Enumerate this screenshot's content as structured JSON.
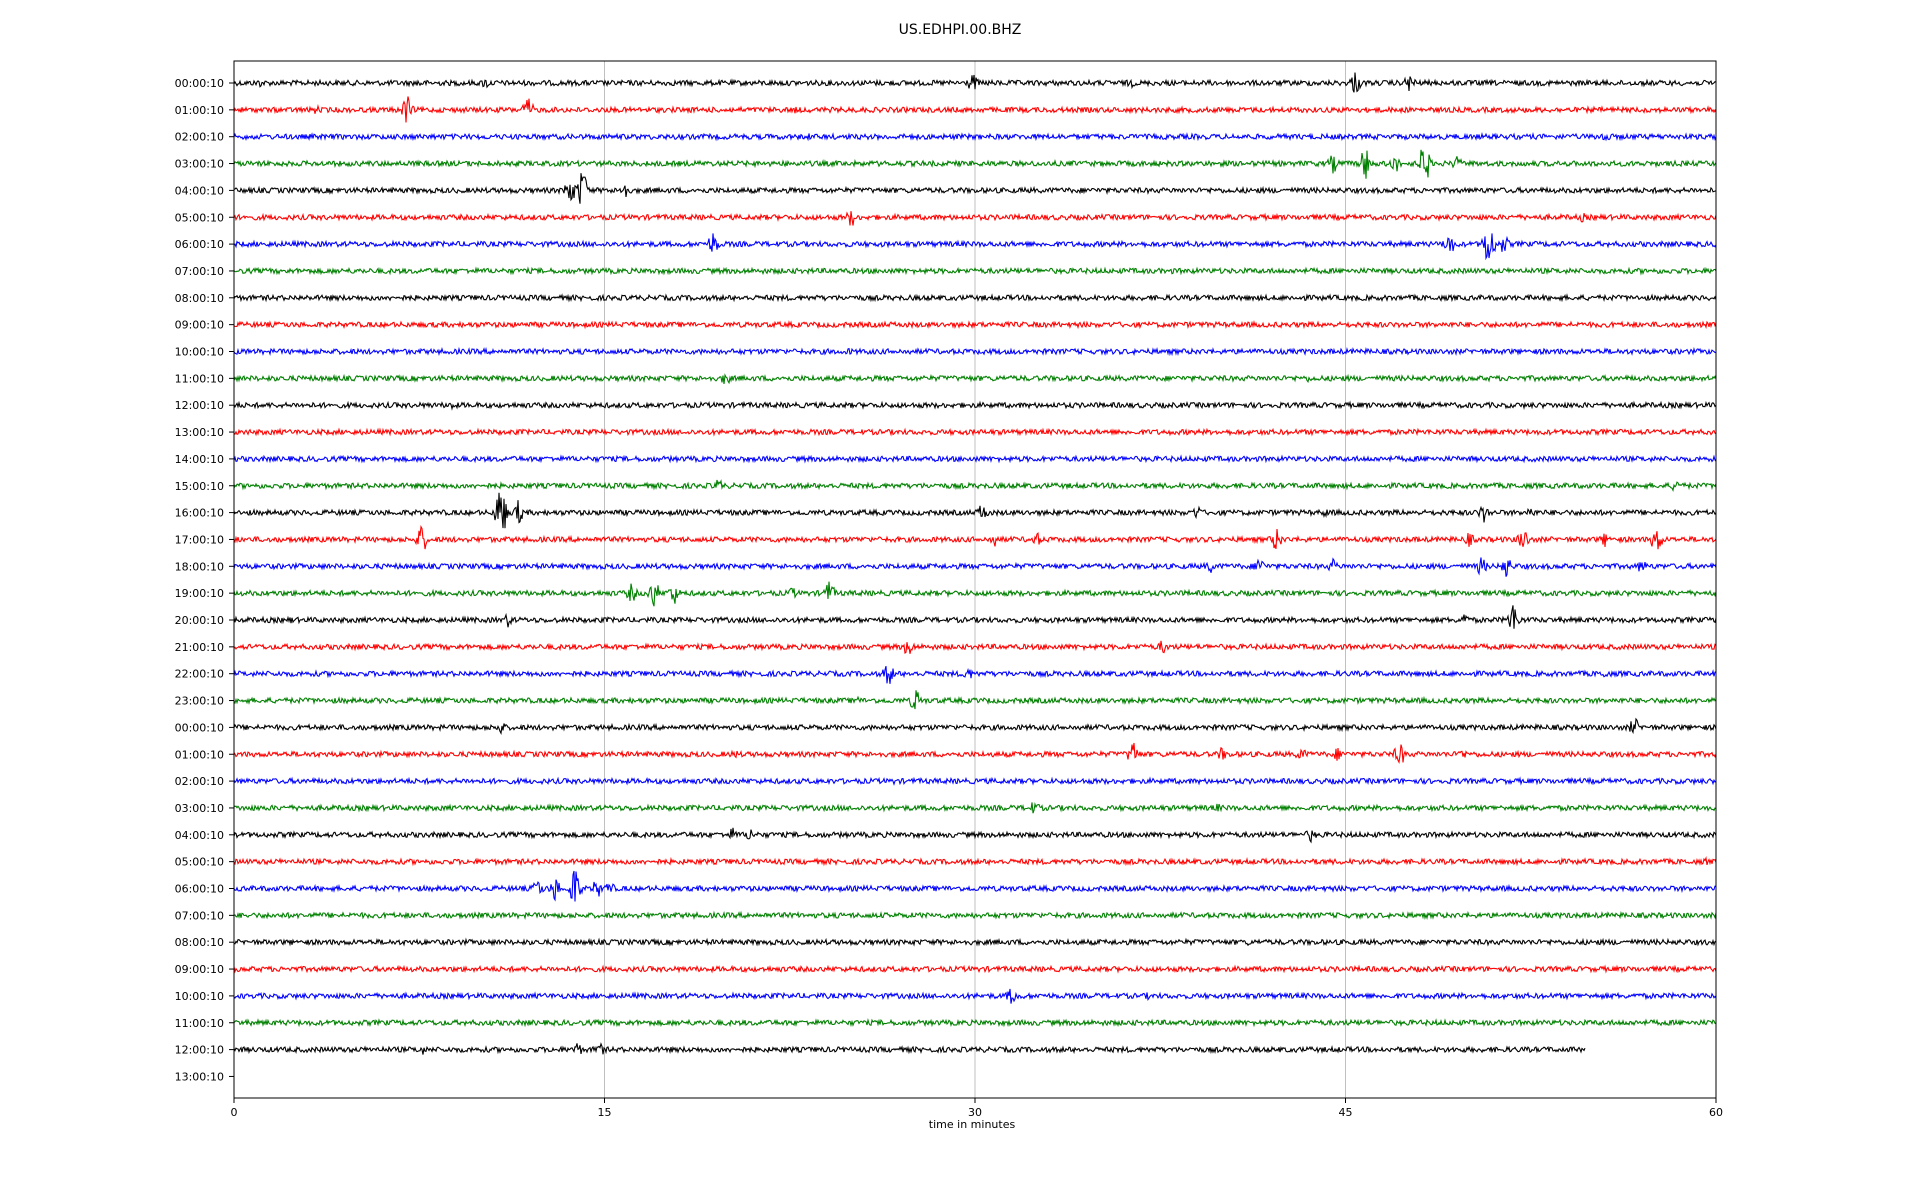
{
  "chart_data": {
    "type": "line",
    "title": "US.EDHPI.00.BHZ",
    "xlabel": "time in minutes",
    "xlim": [
      0,
      60
    ],
    "xticks": [
      "0",
      "15",
      "30",
      "45",
      "60"
    ],
    "grid": "vertical",
    "colors": [
      "#000000",
      "#ff0000",
      "#0000ff",
      "#008000"
    ],
    "rows": [
      {
        "label": "00:00:10",
        "end": 60,
        "events": [
          [
            1,
            2
          ],
          [
            7.5,
            2
          ],
          [
            10.2,
            2.5
          ],
          [
            29.9,
            4
          ],
          [
            36.3,
            2
          ],
          [
            45.4,
            5
          ],
          [
            47.6,
            4
          ]
        ]
      },
      {
        "label": "01:00:10",
        "end": 60,
        "events": [
          [
            3.3,
            2
          ],
          [
            7,
            6
          ],
          [
            11.9,
            5
          ],
          [
            22.7,
            1.5
          ]
        ]
      },
      {
        "label": "02:00:10",
        "end": 60,
        "events": [
          [
            23.3,
            1.5
          ],
          [
            55.5,
            3
          ]
        ]
      },
      {
        "label": "03:00:10",
        "end": 60,
        "events": [
          [
            44.5,
            4
          ],
          [
            45.8,
            7
          ],
          [
            47,
            4
          ],
          [
            48.2,
            9
          ],
          [
            49.5,
            3
          ]
        ]
      },
      {
        "label": "04:00:10",
        "end": 60,
        "events": [
          [
            13.6,
            6
          ],
          [
            14.1,
            9
          ],
          [
            15.8,
            4
          ]
        ]
      },
      {
        "label": "05:00:10",
        "end": 60,
        "events": [
          [
            25,
            4
          ],
          [
            54.6,
            2
          ]
        ]
      },
      {
        "label": "06:00:10",
        "end": 60,
        "events": [
          [
            19.4,
            5
          ],
          [
            49.2,
            5
          ],
          [
            50.8,
            10
          ],
          [
            51.4,
            4
          ]
        ]
      },
      {
        "label": "07:00:10",
        "end": 60,
        "events": [
          [
            17,
            1.2
          ],
          [
            38,
            1.2
          ]
        ]
      },
      {
        "label": "08:00:10",
        "end": 60,
        "events": [
          [
            22,
            1.2
          ]
        ]
      },
      {
        "label": "09:00:10",
        "end": 60,
        "events": [
          [
            25,
            1.2
          ]
        ]
      },
      {
        "label": "10:00:10",
        "end": 60,
        "events": [
          [
            24.9,
            1.5
          ]
        ]
      },
      {
        "label": "11:00:10",
        "end": 60,
        "events": [
          [
            19.9,
            3
          ],
          [
            43.5,
            1.5
          ]
        ]
      },
      {
        "label": "12:00:10",
        "end": 60,
        "events": [
          [
            8.8,
            2
          ],
          [
            50,
            1.2
          ]
        ]
      },
      {
        "label": "13:00:10",
        "end": 60,
        "events": [
          [
            30,
            1
          ]
        ]
      },
      {
        "label": "14:00:10",
        "end": 60,
        "events": [
          [
            35,
            1
          ]
        ]
      },
      {
        "label": "15:00:10",
        "end": 60,
        "events": [
          [
            19.6,
            3
          ],
          [
            58.4,
            3
          ]
        ]
      },
      {
        "label": "16:00:10",
        "end": 60,
        "events": [
          [
            10.8,
            12
          ],
          [
            11.5,
            5
          ],
          [
            30.3,
            4
          ],
          [
            39,
            3
          ],
          [
            44.2,
            2
          ],
          [
            50.6,
            4
          ],
          [
            52.5,
            2.5
          ]
        ]
      },
      {
        "label": "17:00:10",
        "end": 60,
        "events": [
          [
            7.6,
            6
          ],
          [
            30.8,
            3
          ],
          [
            32.5,
            3
          ],
          [
            42.2,
            5
          ],
          [
            50,
            3
          ],
          [
            52.2,
            5
          ],
          [
            55.5,
            3
          ],
          [
            57.6,
            6
          ]
        ]
      },
      {
        "label": "18:00:10",
        "end": 60,
        "events": [
          [
            39.5,
            3
          ],
          [
            41.5,
            4
          ],
          [
            44.5,
            3
          ],
          [
            50.5,
            4
          ],
          [
            51.5,
            5
          ],
          [
            57,
            3
          ]
        ]
      },
      {
        "label": "19:00:10",
        "end": 60,
        "events": [
          [
            16.1,
            4
          ],
          [
            17,
            6
          ],
          [
            17.8,
            5
          ],
          [
            22.6,
            2.5
          ],
          [
            24.1,
            5
          ]
        ]
      },
      {
        "label": "20:00:10",
        "end": 60,
        "events": [
          [
            2.3,
            1.5
          ],
          [
            11.1,
            3
          ],
          [
            49.8,
            3
          ],
          [
            51.8,
            7
          ]
        ]
      },
      {
        "label": "21:00:10",
        "end": 60,
        "events": [
          [
            27.3,
            4
          ],
          [
            37.6,
            3
          ]
        ]
      },
      {
        "label": "22:00:10",
        "end": 60,
        "events": [
          [
            26.5,
            5
          ],
          [
            29.7,
            3
          ],
          [
            55.5,
            2
          ]
        ]
      },
      {
        "label": "23:00:10",
        "end": 60,
        "events": [
          [
            25.2,
            2
          ],
          [
            27.6,
            5
          ]
        ]
      },
      {
        "label": "00:00:10",
        "end": 60,
        "events": [
          [
            10.8,
            3
          ],
          [
            40.7,
            1.5
          ],
          [
            56.7,
            4
          ]
        ]
      },
      {
        "label": "01:00:10",
        "end": 60,
        "events": [
          [
            20.3,
            2
          ],
          [
            36.4,
            6
          ],
          [
            40,
            3
          ],
          [
            43.2,
            3
          ],
          [
            44.7,
            3
          ],
          [
            47.2,
            5
          ],
          [
            49.7,
            2.5
          ]
        ]
      },
      {
        "label": "02:00:10",
        "end": 60,
        "events": [
          [
            26.7,
            1.3
          ]
        ]
      },
      {
        "label": "03:00:10",
        "end": 60,
        "events": [
          [
            32.4,
            3
          ],
          [
            39.8,
            2
          ]
        ]
      },
      {
        "label": "04:00:10",
        "end": 60,
        "events": [
          [
            20.2,
            3
          ],
          [
            20.9,
            3
          ],
          [
            43.6,
            3
          ]
        ]
      },
      {
        "label": "05:00:10",
        "end": 60,
        "events": [
          [
            59.6,
            1.5
          ]
        ]
      },
      {
        "label": "06:00:10",
        "end": 60,
        "events": [
          [
            12.3,
            4
          ],
          [
            13,
            5
          ],
          [
            13.8,
            9
          ],
          [
            14.7,
            4
          ],
          [
            15.2,
            3
          ]
        ]
      },
      {
        "label": "07:00:10",
        "end": 60,
        "events": [
          [
            30,
            1
          ]
        ]
      },
      {
        "label": "08:00:10",
        "end": 60,
        "events": [
          [
            41,
            1.5
          ]
        ]
      },
      {
        "label": "09:00:10",
        "end": 60,
        "events": [
          [
            20,
            1
          ]
        ]
      },
      {
        "label": "10:00:10",
        "end": 60,
        "events": [
          [
            31.5,
            4
          ],
          [
            37,
            1.5
          ]
        ]
      },
      {
        "label": "11:00:10",
        "end": 60,
        "events": [
          [
            46,
            1.3
          ]
        ]
      },
      {
        "label": "12:00:10",
        "end": 54.7,
        "events": [
          [
            7.6,
            2.5
          ],
          [
            13.9,
            3
          ],
          [
            14.8,
            3
          ],
          [
            17,
            1.5
          ]
        ]
      },
      {
        "label": "13:00:10",
        "end": 0,
        "events": []
      }
    ]
  }
}
